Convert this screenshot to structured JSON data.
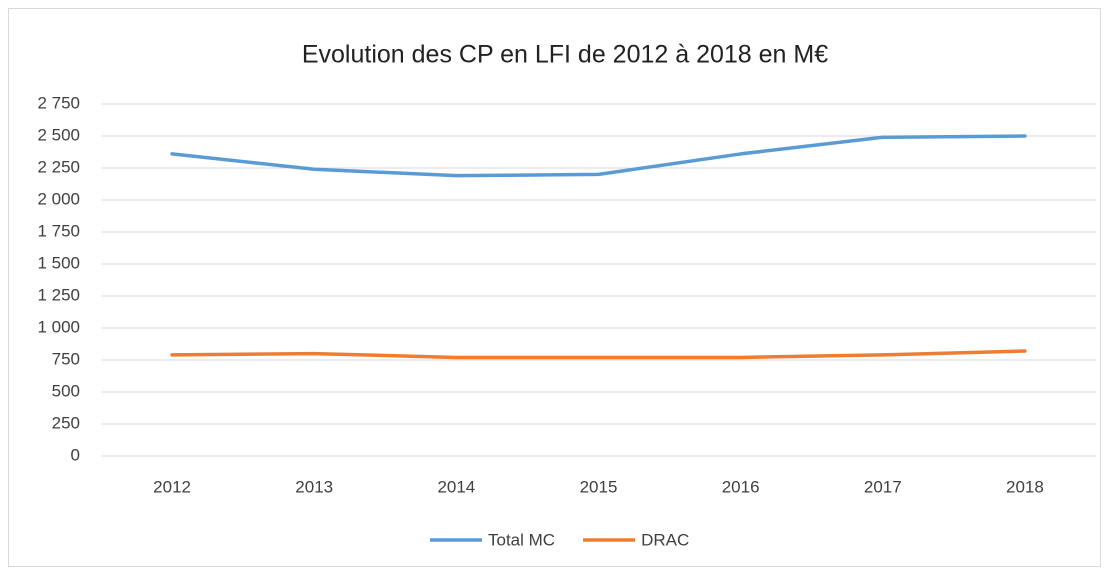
{
  "chart_data": {
    "type": "line",
    "title": "Evolution des CP en LFI de 2012 à 2018 en M€",
    "categories": [
      "2012",
      "2013",
      "2014",
      "2015",
      "2016",
      "2017",
      "2018"
    ],
    "series": [
      {
        "name": "Total MC",
        "color": "#5b9bd5",
        "values": [
          2360,
          2240,
          2190,
          2200,
          2360,
          2490,
          2500
        ]
      },
      {
        "name": "DRAC",
        "color": "#ed7d31",
        "values": [
          790,
          800,
          770,
          770,
          770,
          790,
          820
        ]
      }
    ],
    "ylim": [
      0,
      2750
    ],
    "yticks": [
      0,
      250,
      500,
      750,
      {
        "value": 1000,
        "label": "1 000"
      },
      {
        "value": 1250,
        "label": "1 250"
      },
      {
        "value": 1500,
        "label": "1 500"
      },
      {
        "value": 1750,
        "label": "1 750"
      },
      {
        "value": 2000,
        "label": "2 000"
      },
      {
        "value": 2250,
        "label": "2 250"
      },
      {
        "value": 2500,
        "label": "2 500"
      },
      {
        "value": 2750,
        "label": "2 750"
      }
    ],
    "grid": true,
    "legend": "bottom"
  }
}
